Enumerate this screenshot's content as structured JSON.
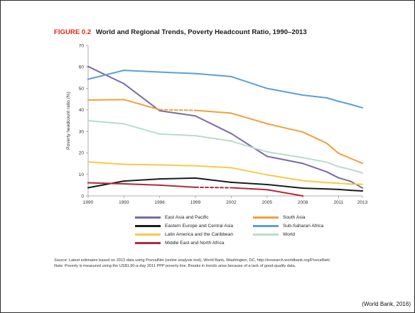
{
  "figure_label": "FIGURE 0.2",
  "figure_title": "World and Regional Trends, Poverty Headcount Ratio, 1990–2013",
  "chart_data": {
    "type": "line",
    "title": "FIGURE 0.2 World and Regional Trends, Poverty Headcount Ratio, 1990–2013",
    "xlabel": "",
    "ylabel": "Poverty headcount ratio (%)",
    "x_ticks": [
      "1990",
      "1993",
      "1996",
      "1999",
      "2002",
      "2005",
      "2008",
      "2011",
      "2013"
    ],
    "y_ticks": [
      "0",
      "10",
      "20",
      "30",
      "40",
      "50",
      "60",
      "70"
    ],
    "xlim": [
      1990,
      2013
    ],
    "ylim": [
      0,
      70
    ],
    "grid": false,
    "legend_position": "bottom",
    "series": [
      {
        "name": "East Asia and Pacific",
        "color": "#7b6aa8",
        "x": [
          1990,
          1993,
          1996,
          1999,
          2002,
          2005,
          2008,
          2010,
          2011,
          2012,
          2013
        ],
        "y": [
          60.2,
          52.2,
          39.6,
          37.2,
          29.0,
          18.4,
          15.1,
          11.2,
          8.4,
          6.8,
          3.7
        ],
        "breaks": []
      },
      {
        "name": "Eastern Europe and Central Asia",
        "color": "#1c1c1c",
        "x": [
          1990,
          1993,
          1996,
          1999,
          2002,
          2005,
          2008,
          2010,
          2011,
          2012,
          2013
        ],
        "y": [
          3.8,
          6.9,
          7.9,
          8.3,
          6.3,
          5.3,
          3.6,
          3.2,
          3.0,
          2.6,
          2.3
        ],
        "breaks": []
      },
      {
        "name": "Latin America and the Caribbean",
        "color": "#f7c948",
        "x": [
          1990,
          1993,
          1996,
          1999,
          2002,
          2005,
          2008,
          2010,
          2011,
          2012,
          2013
        ],
        "y": [
          15.8,
          14.7,
          14.4,
          14.0,
          13.1,
          9.8,
          7.1,
          6.2,
          5.9,
          5.5,
          5.4
        ],
        "breaks": []
      },
      {
        "name": "Middle East and North Africa",
        "color": "#b12a3a",
        "x": [
          1990,
          1993,
          1996,
          1999,
          2002,
          2005,
          2008
        ],
        "y": [
          6.1,
          5.6,
          5.0,
          4.0,
          3.8,
          2.9,
          0.0
        ],
        "breaks": [
          3
        ]
      },
      {
        "name": "South Asia",
        "color": "#f0a03c",
        "x": [
          1990,
          1993,
          1996,
          1999,
          2002,
          2005,
          2008,
          2010,
          2011,
          2012,
          2013
        ],
        "y": [
          44.6,
          44.8,
          40.1,
          39.8,
          38.5,
          33.6,
          29.7,
          24.5,
          19.8,
          17.5,
          15.1
        ],
        "breaks": [
          2
        ]
      },
      {
        "name": "Sub-Saharan Africa",
        "color": "#5aa0d8",
        "x": [
          1990,
          1993,
          1996,
          1999,
          2002,
          2005,
          2008,
          2010,
          2011,
          2012,
          2013
        ],
        "y": [
          54.3,
          58.4,
          57.6,
          56.9,
          55.5,
          50.0,
          46.9,
          45.6,
          44.0,
          42.6,
          41.0
        ],
        "breaks": []
      },
      {
        "name": "World",
        "color": "#b9dcc8",
        "x": [
          1990,
          1993,
          1996,
          1999,
          2002,
          2005,
          2008,
          2010,
          2011,
          2012,
          2013
        ],
        "y": [
          35.0,
          33.5,
          28.8,
          28.0,
          25.5,
          20.5,
          17.8,
          15.7,
          13.6,
          12.3,
          10.7
        ],
        "breaks": []
      }
    ]
  },
  "legend": [
    {
      "label": "East Asia and Pacific",
      "color": "#7b6aa8"
    },
    {
      "label": "South Asia",
      "color": "#f0a03c"
    },
    {
      "label": "Eastern Europe and Central Asia",
      "color": "#1c1c1c"
    },
    {
      "label": "Sub-Saharan Africa",
      "color": "#5aa0d8"
    },
    {
      "label": "Latin America and the Caribbean",
      "color": "#f7c948"
    },
    {
      "label": "World",
      "color": "#b9dcc8"
    },
    {
      "label": "Middle East and North Africa",
      "color": "#b12a3a"
    }
  ],
  "notes": {
    "source_label": "Source:",
    "source_text": "Latest estimates based on 2013 data using PovcalNet (online analysis tool), World Bank, Washington, DC, http://iresearch.worldbank.org/PovcalNet/.",
    "note_label": "Note:",
    "note_text": "Poverty is measured using the US$1.90-a-day 2011 PPP poverty line. Breaks in trends arise because of a lack of good-quality data."
  },
  "credit": "(World Bank, 2016)"
}
